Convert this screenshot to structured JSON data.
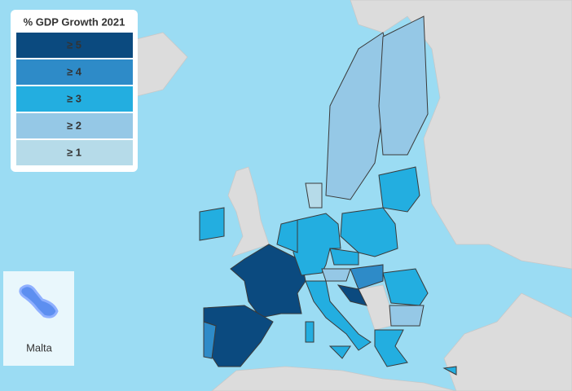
{
  "legend": {
    "title": "% GDP Growth 2021",
    "items": [
      {
        "label": "≥ 5",
        "color": "#0b4a7f"
      },
      {
        "label": "≥ 4",
        "color": "#2e8bc8"
      },
      {
        "label": "≥ 3",
        "color": "#23aee0"
      },
      {
        "label": "≥ 2",
        "color": "#95c8e6"
      },
      {
        "label": "≥ 1",
        "color": "#b6dbe9"
      }
    ]
  },
  "inset": {
    "label": "Malta"
  }
}
